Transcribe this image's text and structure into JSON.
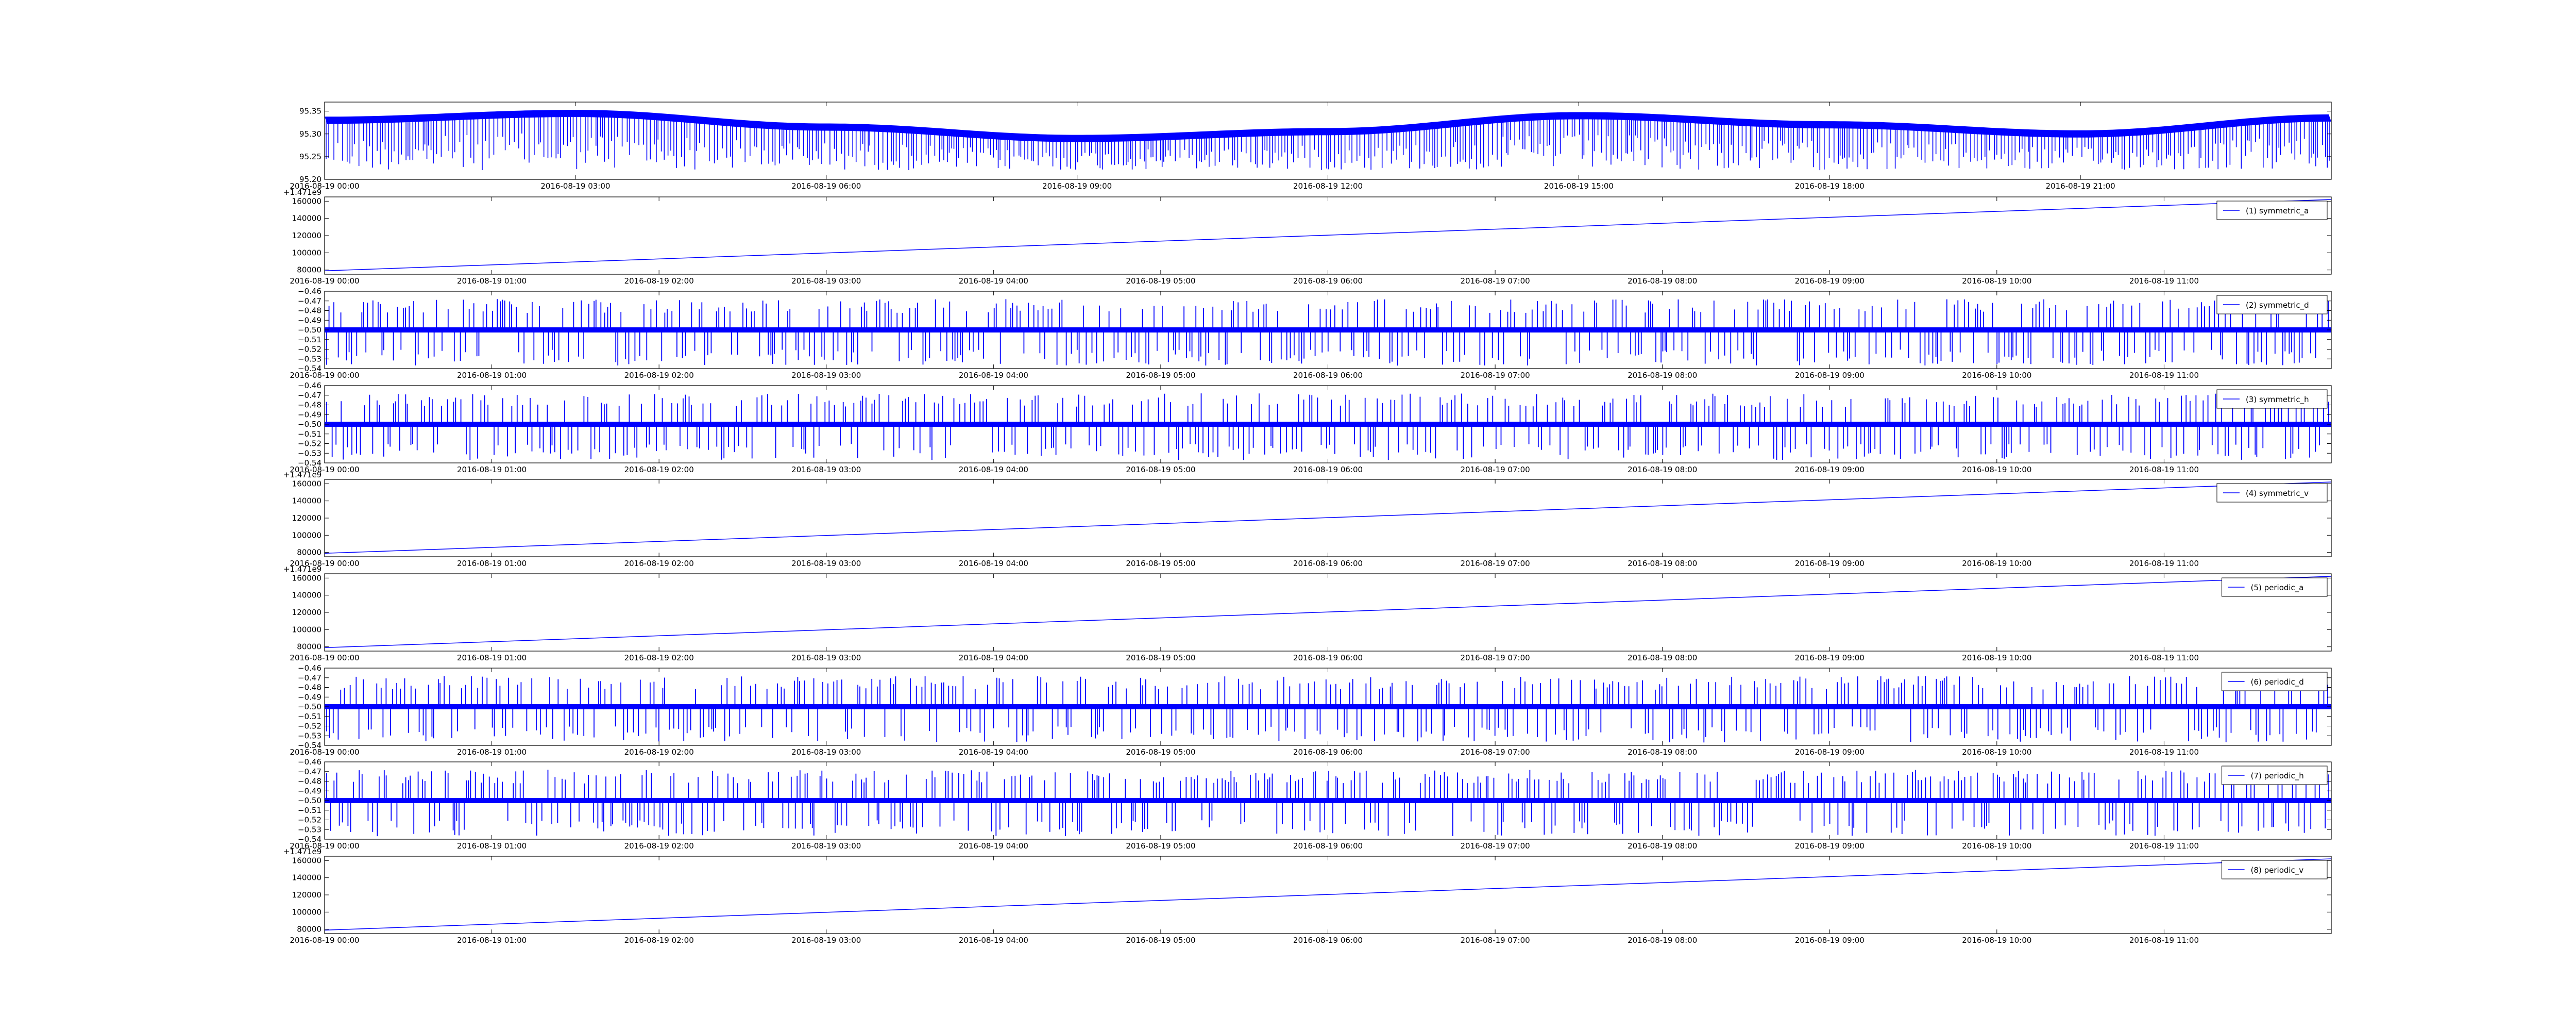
{
  "chart_data": [
    {
      "type": "line",
      "panel": "top",
      "xlabel": "",
      "ylabel": "",
      "ylim": [
        95.2,
        95.37
      ],
      "yticks": [
        "95.20",
        "95.25",
        "95.30",
        "95.35"
      ],
      "xticks": [
        "2016-08-19 00:00",
        "2016-08-19 03:00",
        "2016-08-19 06:00",
        "2016-08-19 09:00",
        "2016-08-19 12:00",
        "2016-08-19 15:00",
        "2016-08-19 18:00",
        "2016-08-19 21:00"
      ],
      "offset_text": "",
      "legend": null,
      "color": "#0000ff",
      "series": [
        {
          "shape": "baseline_with_spikes",
          "x_start": "2016-08-19 00:00",
          "x_end": "2016-08-20 00:00",
          "baseline": [
            {
              "x": "2016-08-19 00:00",
              "y": 95.33
            },
            {
              "x": "2016-08-19 03:00",
              "y": 95.345
            },
            {
              "x": "2016-08-19 06:00",
              "y": 95.315
            },
            {
              "x": "2016-08-19 09:00",
              "y": 95.29
            },
            {
              "x": "2016-08-19 12:00",
              "y": 95.305
            },
            {
              "x": "2016-08-19 15:00",
              "y": 95.34
            },
            {
              "x": "2016-08-19 18:00",
              "y": 95.32
            },
            {
              "x": "2016-08-19 21:00",
              "y": 95.3
            },
            {
              "x": "2016-08-20 00:00",
              "y": 95.335
            }
          ],
          "spike_min": 95.22
        }
      ]
    },
    {
      "type": "line",
      "panel": "symmetric_a",
      "ylim": [
        75000,
        165000
      ],
      "yticks": [
        "80000",
        "100000",
        "120000",
        "140000",
        "160000"
      ],
      "xticks": [
        "2016-08-19 00:00",
        "2016-08-19 01:00",
        "2016-08-19 02:00",
        "2016-08-19 03:00",
        "2016-08-19 04:00",
        "2016-08-19 05:00",
        "2016-08-19 06:00",
        "2016-08-19 07:00",
        "2016-08-19 08:00",
        "2016-08-19 09:00",
        "2016-08-19 10:00",
        "2016-08-19 11:00"
      ],
      "offset_text": "+1.471e9",
      "legend": "(1) symmetric_a",
      "color": "#0000ff",
      "series": [
        {
          "name": "(1) symmetric_a",
          "shape": "linear",
          "x_start": "2016-08-19 00:00",
          "x_end": "2016-08-19 12:00",
          "y_start": 79000,
          "y_end": 162000
        }
      ]
    },
    {
      "type": "line",
      "panel": "symmetric_d",
      "ylim": [
        -0.54,
        -0.46
      ],
      "yticks": [
        "−0.54",
        "−0.53",
        "−0.52",
        "−0.51",
        "−0.50",
        "−0.49",
        "−0.48",
        "−0.47",
        "−0.46"
      ],
      "xticks": [
        "2016-08-19 00:00",
        "2016-08-19 01:00",
        "2016-08-19 02:00",
        "2016-08-19 03:00",
        "2016-08-19 04:00",
        "2016-08-19 05:00",
        "2016-08-19 06:00",
        "2016-08-19 07:00",
        "2016-08-19 08:00",
        "2016-08-19 09:00",
        "2016-08-19 10:00",
        "2016-08-19 11:00"
      ],
      "offset_text": "",
      "legend": "(2) symmetric_d",
      "color": "#0000ff",
      "series": [
        {
          "name": "(2) symmetric_d",
          "shape": "noise_with_spikes",
          "x_start": "2016-08-19 00:00",
          "x_end": "2016-08-19 12:00",
          "center": -0.5,
          "spike_range": [
            -0.537,
            -0.468
          ]
        }
      ]
    },
    {
      "type": "line",
      "panel": "symmetric_h",
      "ylim": [
        -0.54,
        -0.46
      ],
      "yticks": [
        "−0.54",
        "−0.53",
        "−0.52",
        "−0.51",
        "−0.50",
        "−0.49",
        "−0.48",
        "−0.47",
        "−0.46"
      ],
      "xticks": [
        "2016-08-19 00:00",
        "2016-08-19 01:00",
        "2016-08-19 02:00",
        "2016-08-19 03:00",
        "2016-08-19 04:00",
        "2016-08-19 05:00",
        "2016-08-19 06:00",
        "2016-08-19 07:00",
        "2016-08-19 08:00",
        "2016-08-19 09:00",
        "2016-08-19 10:00",
        "2016-08-19 11:00"
      ],
      "offset_text": "",
      "legend": "(3) symmetric_h",
      "color": "#0000ff",
      "series": [
        {
          "name": "(3) symmetric_h",
          "shape": "noise_with_spikes",
          "x_start": "2016-08-19 00:00",
          "x_end": "2016-08-19 12:00",
          "center": -0.5,
          "spike_range": [
            -0.537,
            -0.468
          ]
        }
      ]
    },
    {
      "type": "line",
      "panel": "symmetric_v",
      "ylim": [
        75000,
        165000
      ],
      "yticks": [
        "80000",
        "100000",
        "120000",
        "140000",
        "160000"
      ],
      "xticks": [
        "2016-08-19 00:00",
        "2016-08-19 01:00",
        "2016-08-19 02:00",
        "2016-08-19 03:00",
        "2016-08-19 04:00",
        "2016-08-19 05:00",
        "2016-08-19 06:00",
        "2016-08-19 07:00",
        "2016-08-19 08:00",
        "2016-08-19 09:00",
        "2016-08-19 10:00",
        "2016-08-19 11:00"
      ],
      "offset_text": "+1.471e9",
      "legend": "(4) symmetric_v",
      "color": "#0000ff",
      "series": [
        {
          "name": "(4) symmetric_v",
          "shape": "linear",
          "x_start": "2016-08-19 00:00",
          "x_end": "2016-08-19 12:00",
          "y_start": 79000,
          "y_end": 162000
        }
      ]
    },
    {
      "type": "line",
      "panel": "periodic_a",
      "ylim": [
        75000,
        165000
      ],
      "yticks": [
        "80000",
        "100000",
        "120000",
        "140000",
        "160000"
      ],
      "xticks": [
        "2016-08-19 00:00",
        "2016-08-19 01:00",
        "2016-08-19 02:00",
        "2016-08-19 03:00",
        "2016-08-19 04:00",
        "2016-08-19 05:00",
        "2016-08-19 06:00",
        "2016-08-19 07:00",
        "2016-08-19 08:00",
        "2016-08-19 09:00",
        "2016-08-19 10:00",
        "2016-08-19 11:00"
      ],
      "offset_text": "+1.471e9",
      "legend": "(5) periodic_a",
      "color": "#0000ff",
      "series": [
        {
          "name": "(5) periodic_a",
          "shape": "linear",
          "x_start": "2016-08-19 00:00",
          "x_end": "2016-08-19 12:00",
          "y_start": 79000,
          "y_end": 162000
        }
      ]
    },
    {
      "type": "line",
      "panel": "periodic_d",
      "ylim": [
        -0.54,
        -0.46
      ],
      "yticks": [
        "−0.54",
        "−0.53",
        "−0.52",
        "−0.51",
        "−0.50",
        "−0.49",
        "−0.48",
        "−0.47",
        "−0.46"
      ],
      "xticks": [
        "2016-08-19 00:00",
        "2016-08-19 01:00",
        "2016-08-19 02:00",
        "2016-08-19 03:00",
        "2016-08-19 04:00",
        "2016-08-19 05:00",
        "2016-08-19 06:00",
        "2016-08-19 07:00",
        "2016-08-19 08:00",
        "2016-08-19 09:00",
        "2016-08-19 10:00",
        "2016-08-19 11:00"
      ],
      "offset_text": "",
      "legend": "(6) periodic_d",
      "color": "#0000ff",
      "series": [
        {
          "name": "(6) periodic_d",
          "shape": "noise_with_spikes",
          "x_start": "2016-08-19 00:00",
          "x_end": "2016-08-19 12:00",
          "center": -0.5,
          "spike_range": [
            -0.537,
            -0.468
          ]
        }
      ]
    },
    {
      "type": "line",
      "panel": "periodic_h",
      "ylim": [
        -0.54,
        -0.46
      ],
      "yticks": [
        "−0.54",
        "−0.53",
        "−0.52",
        "−0.51",
        "−0.50",
        "−0.49",
        "−0.48",
        "−0.47",
        "−0.46"
      ],
      "xticks": [
        "2016-08-19 00:00",
        "2016-08-19 01:00",
        "2016-08-19 02:00",
        "2016-08-19 03:00",
        "2016-08-19 04:00",
        "2016-08-19 05:00",
        "2016-08-19 06:00",
        "2016-08-19 07:00",
        "2016-08-19 08:00",
        "2016-08-19 09:00",
        "2016-08-19 10:00",
        "2016-08-19 11:00"
      ],
      "offset_text": "",
      "legend": "(7) periodic_h",
      "color": "#0000ff",
      "series": [
        {
          "name": "(7) periodic_h",
          "shape": "noise_with_spikes",
          "x_start": "2016-08-19 00:00",
          "x_end": "2016-08-19 12:00",
          "center": -0.5,
          "spike_range": [
            -0.537,
            -0.468
          ]
        }
      ]
    },
    {
      "type": "line",
      "panel": "periodic_v",
      "ylim": [
        75000,
        165000
      ],
      "yticks": [
        "80000",
        "100000",
        "120000",
        "140000",
        "160000"
      ],
      "xticks": [
        "2016-08-19 00:00",
        "2016-08-19 01:00",
        "2016-08-19 02:00",
        "2016-08-19 03:00",
        "2016-08-19 04:00",
        "2016-08-19 05:00",
        "2016-08-19 06:00",
        "2016-08-19 07:00",
        "2016-08-19 08:00",
        "2016-08-19 09:00",
        "2016-08-19 10:00",
        "2016-08-19 11:00"
      ],
      "offset_text": "+1.471e9",
      "legend": "(8) periodic_v",
      "color": "#0000ff",
      "series": [
        {
          "name": "(8) periodic_v",
          "shape": "linear",
          "x_start": "2016-08-19 00:00",
          "x_end": "2016-08-19 12:00",
          "y_start": 79000,
          "y_end": 162000
        }
      ]
    }
  ]
}
